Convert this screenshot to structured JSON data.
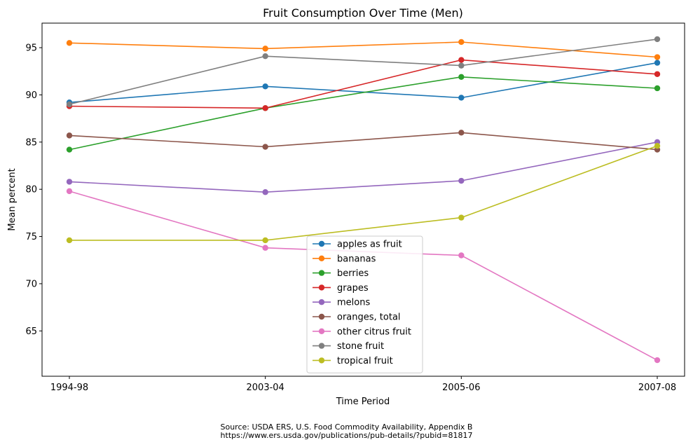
{
  "chart_data": {
    "type": "line",
    "title": "Fruit Consumption Over Time (Men)",
    "xlabel": "Time Period",
    "ylabel": "Mean percent",
    "categories": [
      "1994-98",
      "2003-04",
      "2005-06",
      "2007-08"
    ],
    "ylim": [
      60.2,
      97.6
    ],
    "yticks": [
      65,
      70,
      75,
      80,
      85,
      90,
      95
    ],
    "grid": false,
    "legend": "lower center",
    "series": [
      {
        "name": "apples as fruit",
        "color": "#1f77b4",
        "values": [
          89.2,
          90.9,
          89.7,
          93.4
        ]
      },
      {
        "name": "bananas",
        "color": "#ff7f0e",
        "values": [
          95.5,
          94.9,
          95.6,
          94.0
        ]
      },
      {
        "name": "berries",
        "color": "#2ca02c",
        "values": [
          84.2,
          88.6,
          91.9,
          90.7
        ]
      },
      {
        "name": "grapes",
        "color": "#d62728",
        "values": [
          88.8,
          88.6,
          93.7,
          92.2
        ]
      },
      {
        "name": "melons",
        "color": "#9467bd",
        "values": [
          80.8,
          79.7,
          80.9,
          85.0
        ]
      },
      {
        "name": "oranges, total",
        "color": "#8c564b",
        "values": [
          85.7,
          84.5,
          86.0,
          84.2
        ]
      },
      {
        "name": "other citrus fruit",
        "color": "#e377c2",
        "values": [
          79.8,
          73.8,
          73.0,
          61.9
        ]
      },
      {
        "name": "stone fruit",
        "color": "#7f7f7f",
        "values": [
          89.0,
          94.1,
          93.1,
          95.9
        ]
      },
      {
        "name": "tropical fruit",
        "color": "#bcbd22",
        "values": [
          74.6,
          74.6,
          77.0,
          84.6
        ]
      }
    ]
  },
  "source": {
    "line1": "Source: USDA ERS, U.S. Food Commodity Availability, Appendix B",
    "line2": "https://www.ers.usda.gov/publications/pub-details/?pubid=81817"
  }
}
